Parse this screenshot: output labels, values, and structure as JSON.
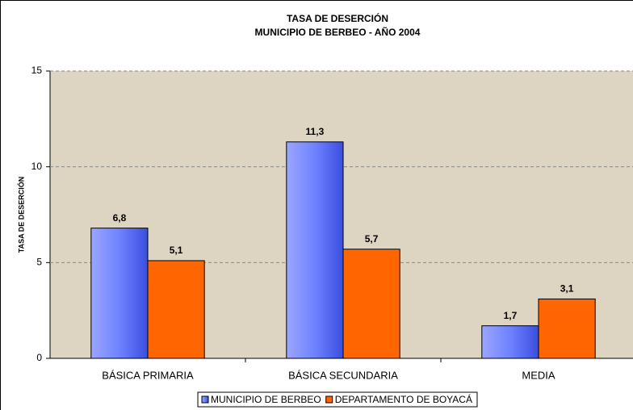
{
  "chart_data": {
    "type": "bar",
    "title": "TASA DE DESERCIÓN",
    "subtitle": "MUNICIPIO DE BERBEO - AÑO 2004",
    "y_label": "TASA DE DESERCIÓN",
    "categories": [
      "BÁSICA PRIMARIA",
      "BÁSICA SECUNDARIA",
      "MEDIA"
    ],
    "series": [
      {
        "name": "MUNICIPIO DE BERBEO",
        "color": "#5b6ff5",
        "values": [
          6.8,
          11.3,
          1.7
        ],
        "value_labels": [
          "6,8",
          "11,3",
          "1,7"
        ]
      },
      {
        "name": "DEPARTAMENTO DE BOYACÁ",
        "color": "#ff6600",
        "values": [
          5.1,
          5.7,
          3.1
        ],
        "value_labels": [
          "5,1",
          "5,7",
          "3,1"
        ]
      }
    ],
    "ylim": [
      0,
      15
    ],
    "yticks": [
      0,
      5,
      10,
      15
    ],
    "grid": true,
    "legend": "bottom"
  }
}
